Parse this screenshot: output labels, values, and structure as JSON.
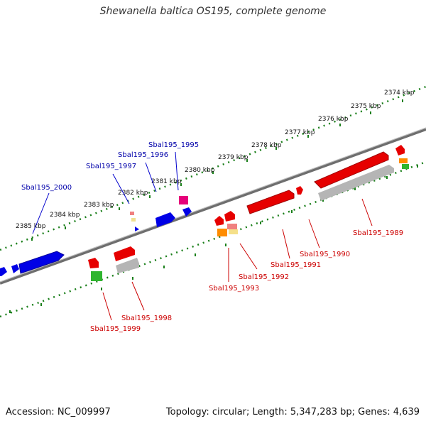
{
  "title": "Shewanella baltica OS195, complete genome",
  "footer": {
    "accession": "Accession: NC_009997",
    "summary": "Topology: circular; Length: 5,347,283 bp; Genes: 4,639"
  },
  "ruler": {
    "unit": "kbp",
    "ticks": [
      "2374 kbp",
      "2375 kbp",
      "2376 kbp",
      "2377 kbp",
      "2378 kbp",
      "2379 kbp",
      "2380 kbp",
      "2381 kbp",
      "2382 kbp",
      "2383 kbp",
      "2384 kbp",
      "2385 kbp"
    ]
  },
  "colors": {
    "forward_strand": "#0000e6",
    "reverse_strand": "#e60000",
    "backbone": "#888888",
    "ruler_dots": "#1a7f1a",
    "forward_label": "#0000aa",
    "reverse_label": "#cc0000"
  },
  "labels": {
    "forward": [
      "Sbal195_1995",
      "Sbal195_1996",
      "Sbal195_1997",
      "Sbal195_2000"
    ],
    "reverse": [
      "Sbal195_1989",
      "Sbal195_1990",
      "Sbal195_1991",
      "Sbal195_1992",
      "Sbal195_1993",
      "Sbal195_1998",
      "Sbal195_1999"
    ]
  }
}
